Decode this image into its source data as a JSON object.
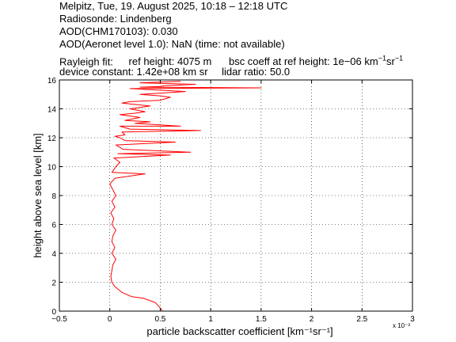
{
  "header": {
    "line1": "Melpitz, Tue, 19. August 2025, 10:18 – 12:18 UTC",
    "line2": "Radiosonde: Lindenberg",
    "line3": "AOD(CHM170103): 0.030",
    "line4": "AOD(Aeronet level 1.0): NaN   (time: not available)",
    "rayleigh_label": "Rayleigh fit:",
    "ref_height": "ref height: 4075 m",
    "bsc_coeff_prefix": "bsc coeff at ref height: 1e−06 km",
    "device_constant": "device constant: 1.42e+08 km sr",
    "lidar_ratio": "lidar ratio: 50.0"
  },
  "chart_data": {
    "type": "line",
    "xlabel": "particle backscatter coefficient [km⁻¹sr⁻¹]",
    "ylabel": "height above sea level [km]",
    "x_multiplier": "x 10⁻³",
    "xlim": [
      -0.5,
      3
    ],
    "ylim": [
      0,
      16
    ],
    "xticks": [
      "−0.5",
      "0",
      "0.5",
      "1",
      "1.5",
      "2",
      "2.5",
      "3"
    ],
    "yticks": [
      "0",
      "2",
      "4",
      "6",
      "8",
      "10",
      "12",
      "14",
      "16"
    ],
    "grid": true,
    "line_color": "#ff0000",
    "series": [
      {
        "x": [
          0.52,
          0.45,
          0.33,
          0.22,
          0.12,
          0.05,
          0.02,
          0.01,
          0.02,
          0.03,
          0.06,
          0.02,
          0.05,
          0.02,
          0.03,
          0.06,
          0.02,
          0.04,
          0.01,
          0.05,
          0.02,
          0.06,
          0.03,
          0.0,
          0.05,
          0.02,
          0.06,
          0.1,
          0.04,
          0.08,
          0.13,
          0.06,
          0.15,
          0.05,
          0.12,
          0.2,
          0.1,
          0.25,
          0.15,
          0.3,
          0.1,
          0.35,
          0.2,
          0.4,
          0.12,
          0.5,
          0.6,
          0.3,
          0.75,
          0.2,
          0.55,
          0.85,
          0.3,
          0.7,
          0.1,
          0.65,
          0.9,
          0.4,
          0.2,
          0.6,
          0.35,
          0.8,
          0.15,
          0.5,
          0.25,
          0.7,
          1.5,
          0.3,
          0.5
        ],
        "y": [
          0.05,
          0.6,
          0.9,
          1.0,
          1.3,
          1.7,
          2.0,
          2.4,
          2.8,
          3.2,
          3.6,
          4.0,
          4.4,
          4.8,
          5.2,
          5.6,
          6.0,
          6.4,
          6.8,
          7.2,
          7.6,
          8.0,
          8.4,
          8.8,
          9.2,
          9.6,
          10.0,
          10.3,
          10.6,
          10.9,
          11.2,
          11.5,
          11.8,
          12.1,
          12.4,
          12.6,
          12.8,
          13.0,
          13.2,
          13.4,
          13.6,
          13.8,
          14.0,
          14.2,
          14.4,
          14.6,
          14.8,
          15.0,
          15.2,
          15.4,
          15.6,
          15.7,
          15.8,
          15.9,
          12.0,
          11.7,
          12.5,
          13.1,
          14.5,
          10.8,
          9.5,
          11.0,
          12.2,
          14.9,
          13.7,
          12.8,
          15.45,
          15.5,
          15.55
        ]
      }
    ]
  }
}
